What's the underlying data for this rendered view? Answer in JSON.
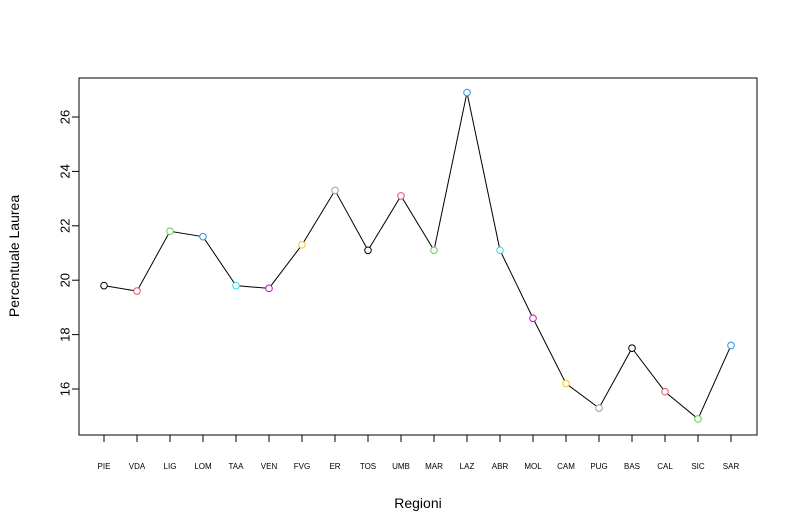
{
  "chart_data": {
    "type": "line",
    "title": "",
    "xlabel": "Regioni",
    "ylabel": "Percentuale Laurea",
    "categories": [
      "PIE",
      "VDA",
      "LIG",
      "LOM",
      "TAA",
      "VEN",
      "FVG",
      "ER",
      "TOS",
      "UMB",
      "MAR",
      "LAZ",
      "ABR",
      "MOL",
      "CAM",
      "PUG",
      "BAS",
      "CAL",
      "SIC",
      "SAR"
    ],
    "values": [
      19.8,
      19.6,
      21.8,
      21.6,
      19.8,
      19.7,
      21.3,
      23.3,
      21.1,
      23.1,
      21.1,
      26.9,
      21.1,
      18.6,
      16.2,
      15.3,
      17.5,
      15.9,
      14.9,
      17.6
    ],
    "point_colors": [
      "#000000",
      "#DF536B",
      "#61D04F",
      "#2297E6",
      "#28E2E5",
      "#CD0BBC",
      "#F5C710",
      "#9E9E9E",
      "#000000",
      "#DF536B",
      "#61D04F",
      "#2297E6",
      "#28E2E5",
      "#CD0BBC",
      "#F5C710",
      "#9E9E9E",
      "#000000",
      "#DF536B",
      "#61D04F",
      "#2297E6"
    ],
    "yticks": [
      16,
      18,
      20,
      22,
      24,
      26
    ],
    "ylim": [
      14.5,
      27.4
    ],
    "grid": false,
    "line_color": "#000000"
  }
}
